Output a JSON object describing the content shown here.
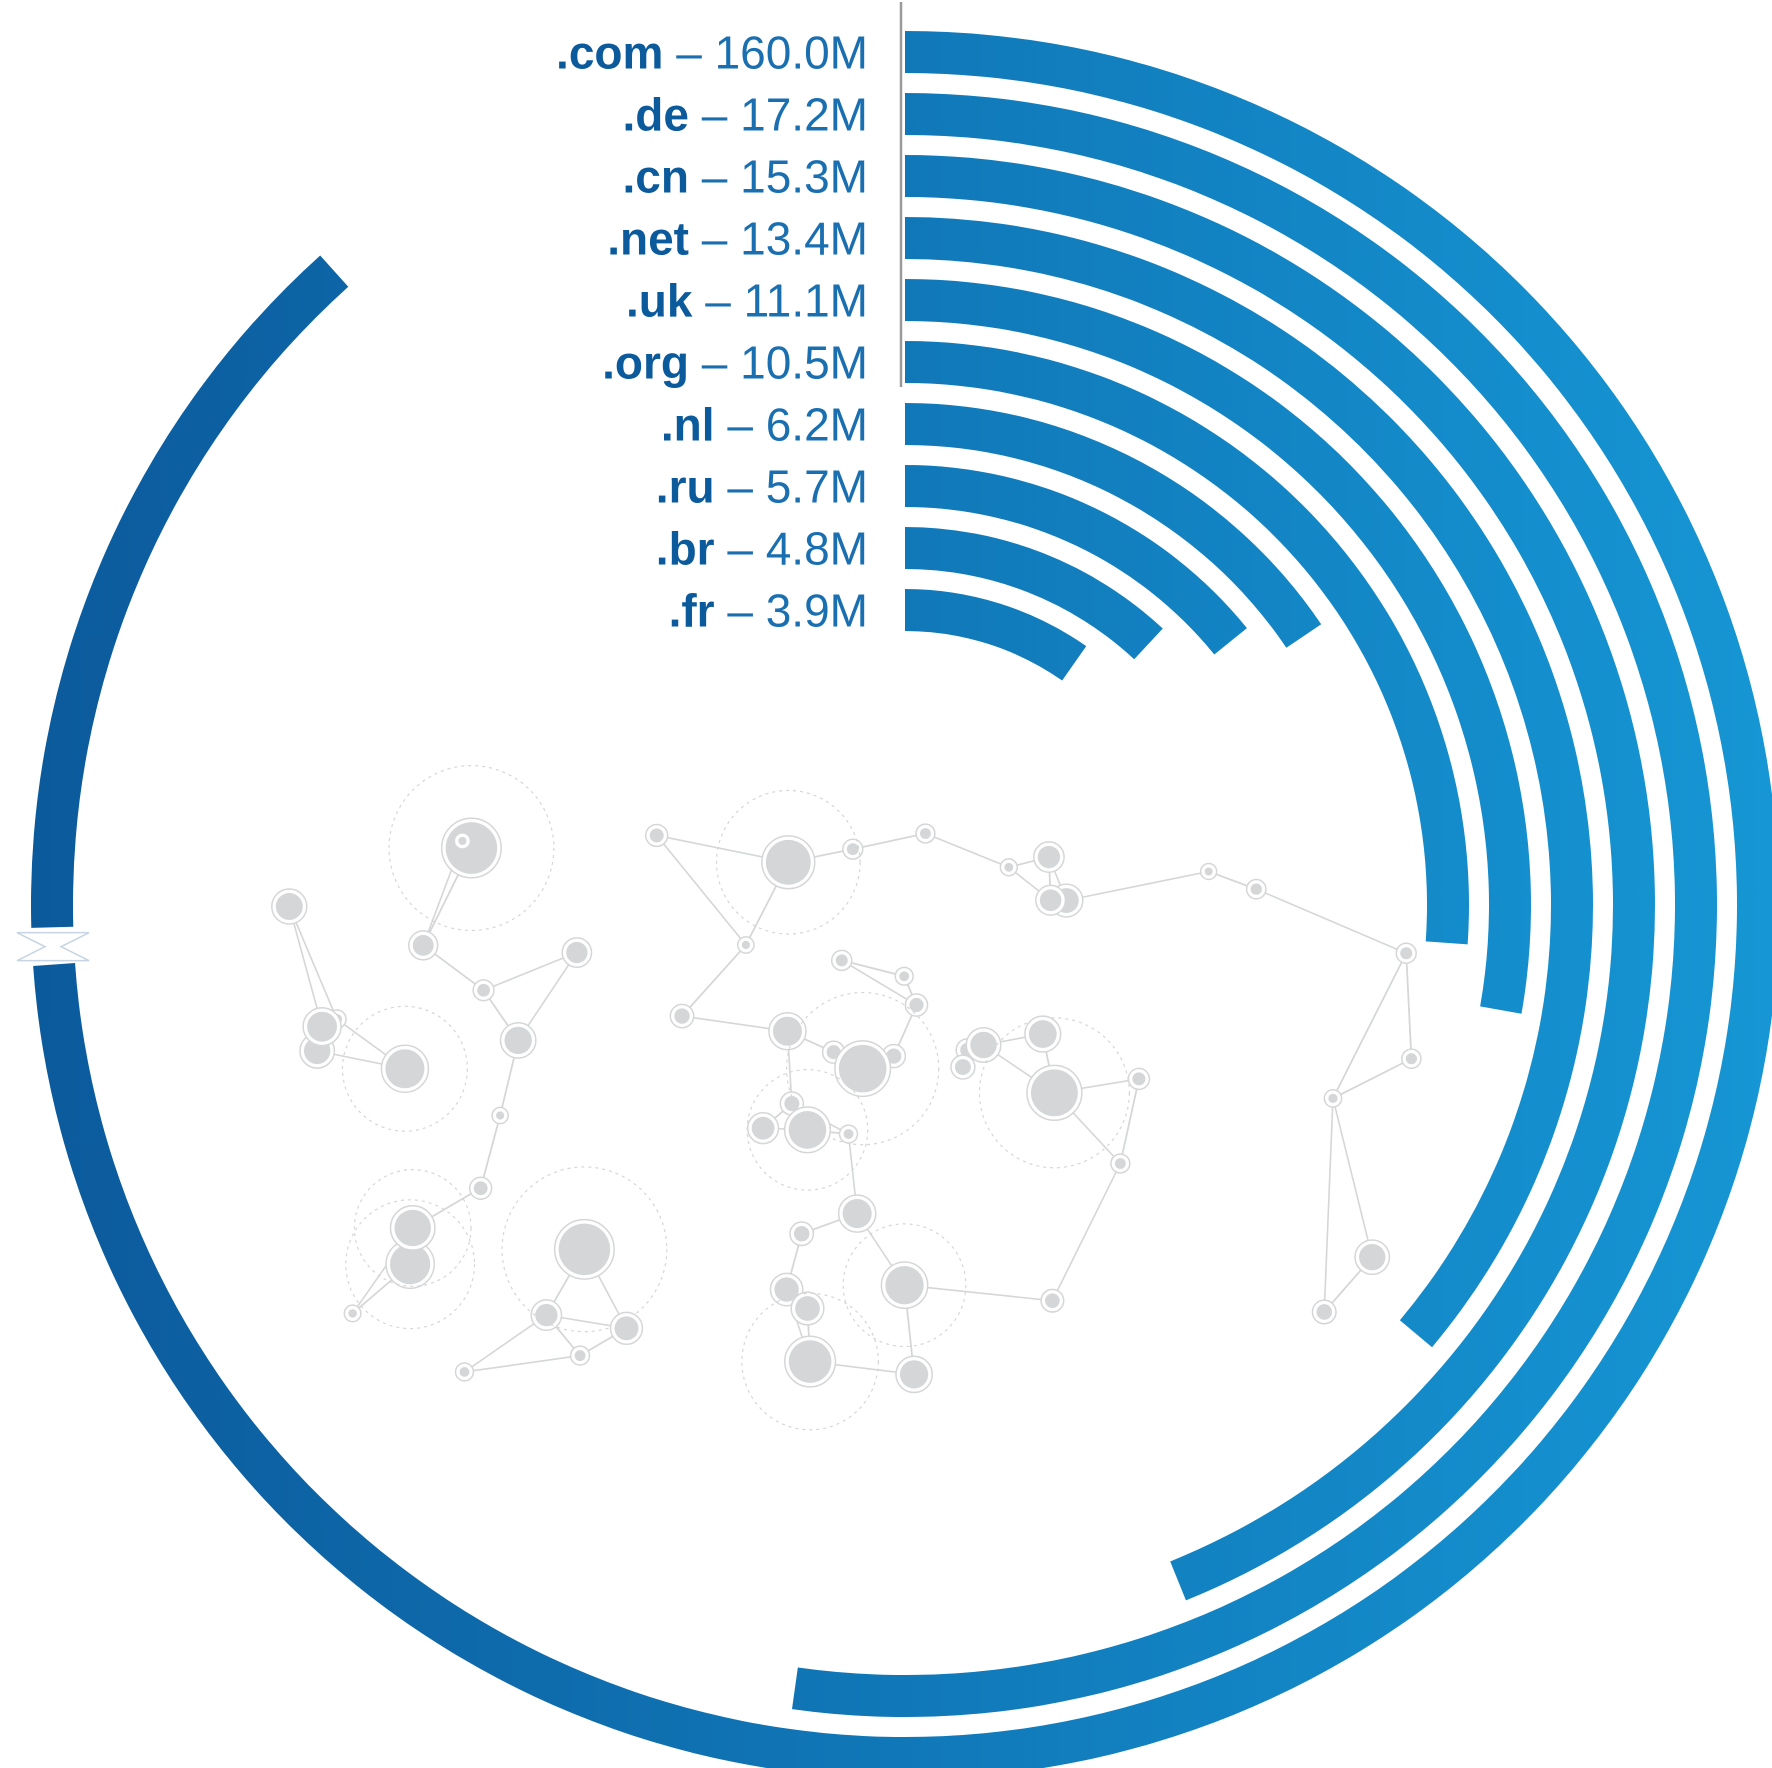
{
  "chart_data": {
    "type": "radial-bar",
    "categories": [
      ".com",
      ".de",
      ".cn",
      ".net",
      ".uk",
      ".org",
      ".nl",
      ".ru",
      ".br",
      ".fr"
    ],
    "series": [
      {
        "values": [
          160.0,
          17.2,
          15.3,
          13.4,
          11.1,
          10.5,
          6.2,
          5.7,
          4.8,
          3.9
        ]
      }
    ],
    "value_labels": [
      "160.0M",
      "17.2M",
      "15.3M",
      "13.4M",
      "11.1M",
      "10.5M",
      "6.2M",
      "5.7M",
      "4.8M",
      "3.9M"
    ],
    "separator": "–",
    "unit": "M",
    "outer_bar_has_scale_break": true,
    "sweep_degrees": [
      318,
      188,
      158,
      130,
      100,
      94,
      56,
      51,
      43,
      35
    ],
    "title": "",
    "xlabel": "",
    "ylabel": "",
    "grid": false,
    "legend": "none",
    "colors": {
      "gradient_start": "#0b5a9c",
      "gradient_end": "#1696d4",
      "label_tld": "#0b5a9c",
      "label_value": "#1a6fb0",
      "divider": "#9a9a9a",
      "network": "#d5d6d8"
    }
  }
}
